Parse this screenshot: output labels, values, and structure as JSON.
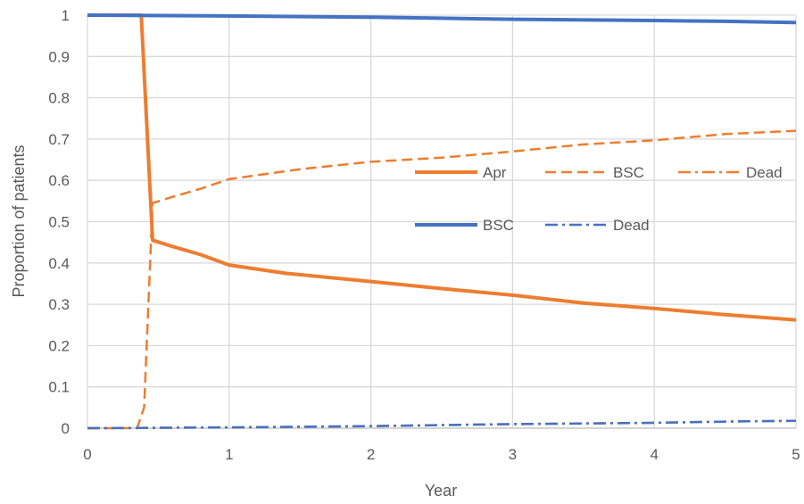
{
  "chart_data": {
    "type": "line",
    "xlabel": "Year",
    "ylabel": "Proportion of patients",
    "xlim": [
      0,
      5
    ],
    "ylim": [
      0,
      1
    ],
    "x_ticks": [
      "0",
      "1",
      "2",
      "3",
      "4",
      "5"
    ],
    "y_ticks": [
      "0",
      "0.1",
      "0.2",
      "0.3",
      "0.4",
      "0.5",
      "0.6",
      "0.7",
      "0.8",
      "0.9",
      "1"
    ],
    "grid": true,
    "legend_position": "upper-right inside plot",
    "legend_rows": [
      [
        "Apr",
        "BSC",
        "Dead"
      ],
      [
        "BSC",
        "Dead"
      ]
    ],
    "colors": {
      "orange": "#ED7D31",
      "blue": "#4472C4",
      "grid": "#D9D9D9",
      "axis": "#BFBFBF"
    },
    "series": [
      {
        "group": "orange",
        "state": "Apr",
        "color": "#ED7D31",
        "style": "solid",
        "x": [
          0,
          0.38,
          0.46,
          0.6,
          0.8,
          1.0,
          1.4,
          2.0,
          2.5,
          3.0,
          3.5,
          4.0,
          4.5,
          5.0
        ],
        "values": [
          1.0,
          1.0,
          0.455,
          0.44,
          0.42,
          0.395,
          0.375,
          0.355,
          0.338,
          0.322,
          0.303,
          0.29,
          0.275,
          0.262
        ]
      },
      {
        "group": "orange",
        "state": "BSC",
        "color": "#ED7D31",
        "style": "dashed",
        "x": [
          0,
          0.35,
          0.4,
          0.46,
          0.6,
          0.8,
          1.0,
          1.5,
          2.0,
          2.5,
          3.0,
          3.5,
          4.0,
          4.5,
          5.0
        ],
        "values": [
          0,
          0,
          0.05,
          0.545,
          0.56,
          0.58,
          0.603,
          0.627,
          0.645,
          0.655,
          0.67,
          0.687,
          0.697,
          0.712,
          0.72
        ]
      },
      {
        "group": "orange",
        "state": "Dead",
        "color": "#ED7D31",
        "style": "dashdot",
        "x": [
          0,
          1.0,
          2.0,
          3.0,
          4.0,
          4.5,
          5.0
        ],
        "values": [
          0,
          0.002,
          0.005,
          0.01,
          0.013,
          0.016,
          0.018
        ]
      },
      {
        "group": "blue",
        "state": "BSC",
        "color": "#4472C4",
        "style": "solid",
        "x": [
          0,
          1.0,
          2.0,
          3.0,
          4.0,
          4.5,
          5.0
        ],
        "values": [
          1.0,
          0.998,
          0.995,
          0.99,
          0.987,
          0.985,
          0.982
        ]
      },
      {
        "group": "blue",
        "state": "Dead",
        "color": "#4472C4",
        "style": "dashdot",
        "x": [
          0,
          1.0,
          2.0,
          3.0,
          4.0,
          4.5,
          5.0
        ],
        "values": [
          0,
          0.002,
          0.005,
          0.01,
          0.013,
          0.016,
          0.018
        ]
      }
    ]
  }
}
